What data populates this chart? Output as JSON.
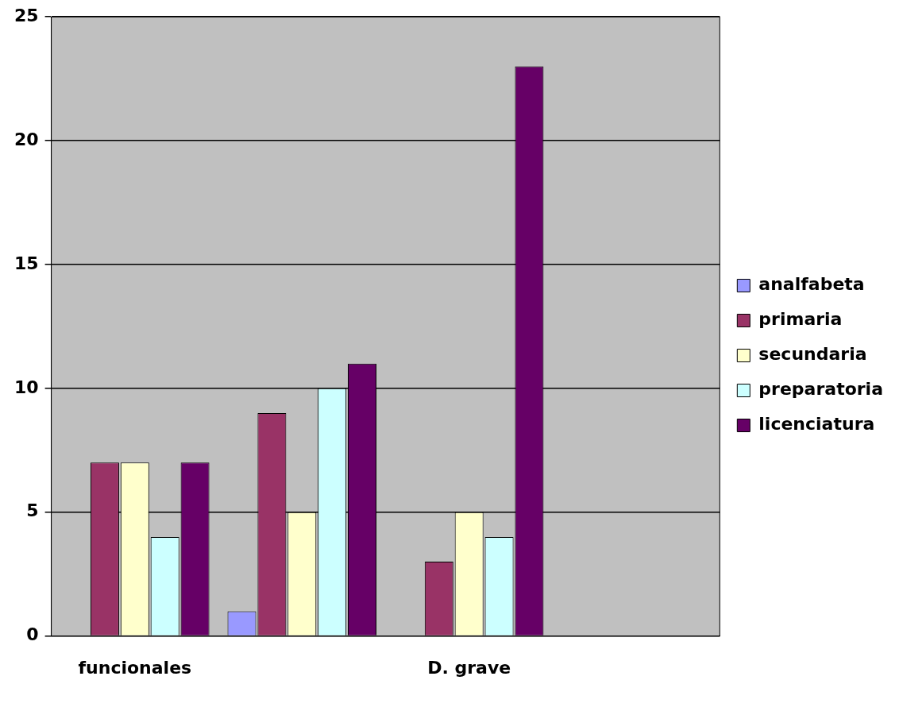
{
  "chart_data": {
    "type": "bar",
    "categories": [
      "funcionales",
      null,
      "D. grave",
      null
    ],
    "series": [
      {
        "name": "analfabeta",
        "color": "#9999ff",
        "values": [
          0,
          1,
          0,
          null
        ]
      },
      {
        "name": "primaria",
        "color": "#993366",
        "values": [
          7,
          9,
          3,
          null
        ]
      },
      {
        "name": "secundaria",
        "color": "#ffffcc",
        "values": [
          7,
          5,
          5,
          null
        ]
      },
      {
        "name": "preparatoria",
        "color": "#ccffff",
        "values": [
          4,
          10,
          4,
          null
        ]
      },
      {
        "name": "licenciatura",
        "color": "#660066",
        "values": [
          7,
          11,
          23,
          null
        ]
      }
    ],
    "ylim": [
      0,
      25
    ],
    "yticks": [
      0,
      5,
      10,
      15,
      20,
      25
    ],
    "grid": "y",
    "legend": "right"
  }
}
